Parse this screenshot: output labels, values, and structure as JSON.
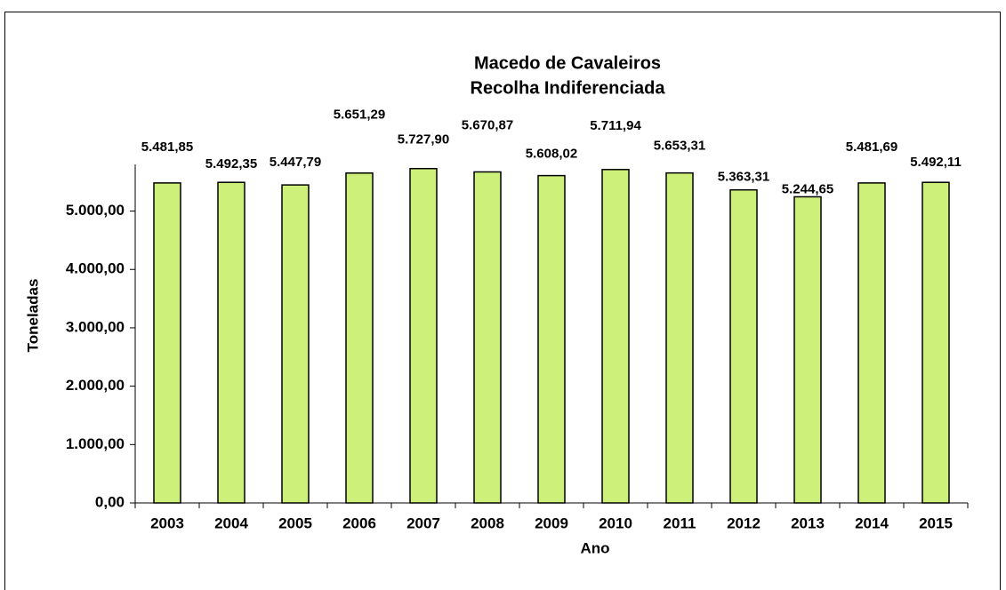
{
  "chart_data": {
    "type": "bar",
    "title": "Macedo de Cavaleiros",
    "subtitle": "Recolha Indiferenciada",
    "x_label": "Ano",
    "y_label": "Toneladas",
    "categories": [
      "2003",
      "2004",
      "2005",
      "2006",
      "2007",
      "2008",
      "2009",
      "2010",
      "2011",
      "2012",
      "2013",
      "2014",
      "2015"
    ],
    "values": [
      5481.85,
      5492.35,
      5447.79,
      5651.29,
      5727.9,
      5670.87,
      5608.02,
      5711.94,
      5653.31,
      5363.31,
      5244.65,
      5481.69,
      5492.11
    ],
    "value_labels": [
      "5.481,85",
      "5.492,35",
      "5.447,79",
      "5.651,29",
      "5.727,90",
      "5.670,87",
      "5.608,02",
      "5.711,94",
      "5.653,31",
      "5.363,31",
      "5.244,65",
      "5.481,69",
      "5.492,11"
    ],
    "color": "#cdf07a",
    "ylim": [
      0,
      5800
    ],
    "yticks": [
      {
        "value": 0,
        "label": "0,00"
      },
      {
        "value": 1000,
        "label": "1.000,00"
      },
      {
        "value": 2000,
        "label": "2.000,00"
      },
      {
        "value": 3000,
        "label": "3.000,00"
      },
      {
        "value": 4000,
        "label": "4.000,00"
      },
      {
        "value": 5000,
        "label": "5.000,00"
      }
    ],
    "grid": false
  }
}
